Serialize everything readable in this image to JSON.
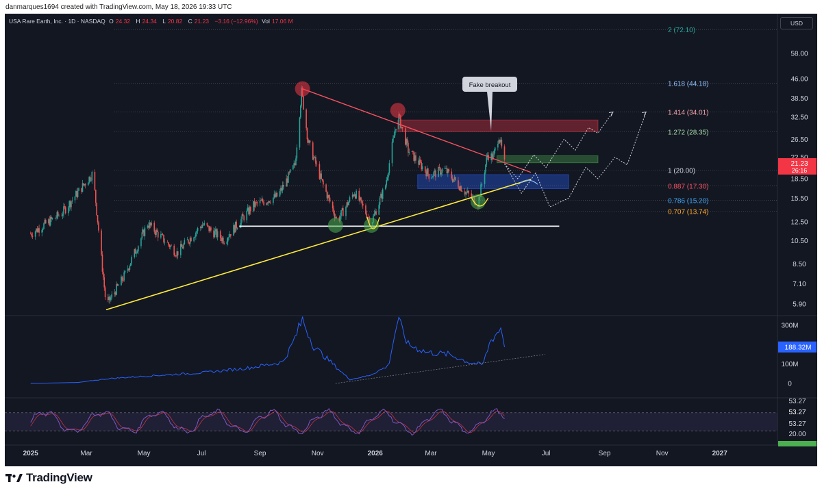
{
  "author_line": "danmarques1694 created with TradingView.com, May 18, 2026 19:33 UTC",
  "header": {
    "symbol": "USA Rare Earth, Inc. · 1D · NASDAQ",
    "open_label": "O",
    "open": "24.32",
    "high_label": "H",
    "high": "24.34",
    "low_label": "L",
    "low": "20.82",
    "close_label": "C",
    "close": "21.23",
    "change": "−3.16 (−12.96%)",
    "vol_label": "Vol",
    "vol": "17.06 M"
  },
  "currency_button": "USD",
  "colors": {
    "background": "#131722",
    "up": "#26a69a",
    "down": "#ef5350",
    "trendline_down": "#f7525f",
    "trendline_up": "#ffeb3b",
    "support": "#ffffff",
    "volume_line": "#2962ff",
    "rsi_line": "#7e57c2"
  },
  "chart_data": {
    "type": "candlestick",
    "log_scale": true,
    "price_axis_ticks": [
      "58.00",
      "46.00",
      "38.50",
      "32.50",
      "26.50",
      "22.50",
      "18.50",
      "15.50",
      "12.50",
      "10.50",
      "8.50",
      "7.10",
      "5.90"
    ],
    "x_axis_ticks": [
      "2025",
      "Mar",
      "May",
      "Jul",
      "Sep",
      "Nov",
      "2026",
      "Mar",
      "May",
      "Jul",
      "Sep",
      "Nov",
      "2027"
    ],
    "last_price": "21.23",
    "countdown": "26:16",
    "fib_levels": [
      {
        "label": "2 (72.10)",
        "value": 72.1,
        "color": "#26a69a"
      },
      {
        "label": "1.618 (44.18)",
        "value": 44.18,
        "color": "#90bff9"
      },
      {
        "label": "1.414 (34.01)",
        "value": 34.01,
        "color": "#f7a5a9"
      },
      {
        "label": "1.272 (28.35)",
        "value": 28.35,
        "color": "#a5d6a7"
      },
      {
        "label": "1 (20.00)",
        "value": 20.0,
        "color": "#d1d4dc"
      },
      {
        "label": "0.887 (17.30)",
        "value": 17.3,
        "color": "#f7525f"
      },
      {
        "label": "0.786 (15.20)",
        "value": 15.2,
        "color": "#42a5f5"
      },
      {
        "label": "0.707 (13.74)",
        "value": 13.74,
        "color": "#ffa726"
      }
    ],
    "annotation": "Fake breakout",
    "anchors": [
      {
        "date": "2025-01-01",
        "price": 11.2
      },
      {
        "date": "2025-02-03",
        "price": 13.5
      },
      {
        "date": "2025-03-08",
        "price": 19.5
      },
      {
        "date": "2025-03-22",
        "price": 5.8
      },
      {
        "date": "2025-04-10",
        "price": 7.6
      },
      {
        "date": "2025-05-05",
        "price": 12.3
      },
      {
        "date": "2025-06-05",
        "price": 9.4
      },
      {
        "date": "2025-07-02",
        "price": 12.2
      },
      {
        "date": "2025-07-25",
        "price": 10.6
      },
      {
        "date": "2025-08-25",
        "price": 14.5
      },
      {
        "date": "2025-09-20",
        "price": 15.8
      },
      {
        "date": "2025-10-08",
        "price": 21.0
      },
      {
        "date": "2025-10-15",
        "price": 41.0
      },
      {
        "date": "2025-10-22",
        "price": 26.0
      },
      {
        "date": "2025-11-05",
        "price": 18.2
      },
      {
        "date": "2025-11-22",
        "price": 12.6
      },
      {
        "date": "2025-12-10",
        "price": 16.4
      },
      {
        "date": "2025-12-28",
        "price": 12.4
      },
      {
        "date": "2026-01-12",
        "price": 17.5
      },
      {
        "date": "2026-01-25",
        "price": 33.5
      },
      {
        "date": "2026-02-05",
        "price": 24.0
      },
      {
        "date": "2026-02-28",
        "price": 19.0
      },
      {
        "date": "2026-03-15",
        "price": 20.2
      },
      {
        "date": "2026-04-08",
        "price": 16.2
      },
      {
        "date": "2026-04-20",
        "price": 14.8
      },
      {
        "date": "2026-04-30",
        "price": 23.0
      },
      {
        "date": "2026-05-06",
        "price": 22.5
      },
      {
        "date": "2026-05-12",
        "price": 27.5
      },
      {
        "date": "2026-05-15",
        "price": 24.3
      },
      {
        "date": "2026-05-18",
        "price": 21.23
      }
    ],
    "resistance_line": {
      "from": {
        "date": "2025-10-16",
        "price": 42.0
      },
      "to": {
        "date": "2026-06-15",
        "price": 19.6
      }
    },
    "ascending_support": {
      "from": {
        "date": "2025-03-22",
        "price": 5.6
      },
      "to": {
        "date": "2026-06-15",
        "price": 18.4
      }
    },
    "horizontal_support": {
      "from": "2025-08-10",
      "to": "2026-07-15",
      "price": 12.0
    },
    "zones": [
      {
        "from": "2026-01-25",
        "to": "2026-08-25",
        "low": 28.4,
        "high": 31.6,
        "color": "#f23645"
      },
      {
        "from": "2026-05-10",
        "to": "2026-08-25",
        "low": 21.4,
        "high": 22.8,
        "color": "#4caf50"
      },
      {
        "from": "2026-02-15",
        "to": "2026-07-25",
        "low": 16.9,
        "high": 19.2,
        "color": "#2962ff"
      }
    ],
    "markers": [
      {
        "date": "2025-10-16",
        "price": 42.0,
        "color": "#f23645"
      },
      {
        "date": "2026-01-25",
        "price": 34.5,
        "color": "#f23645"
      },
      {
        "date": "2025-11-20",
        "price": 12.1,
        "color": "#4caf50"
      },
      {
        "date": "2025-12-28",
        "price": 12.1,
        "color": "#4caf50"
      },
      {
        "date": "2026-04-20",
        "price": 15.0,
        "color": "#4caf50"
      }
    ],
    "projection_paths": [
      [
        {
          "date": "2026-05-18",
          "price": 21.2
        },
        {
          "date": "2026-06-05",
          "price": 16.2
        },
        {
          "date": "2026-06-20",
          "price": 19.5
        },
        {
          "date": "2026-07-05",
          "price": 14.3
        },
        {
          "date": "2026-07-25",
          "price": 15.5
        },
        {
          "date": "2026-08-12",
          "price": 20.5
        },
        {
          "date": "2026-08-25",
          "price": 18.5
        },
        {
          "date": "2026-09-12",
          "price": 22.5
        },
        {
          "date": "2026-09-25",
          "price": 21.0
        },
        {
          "date": "2026-10-15",
          "price": 34.0
        }
      ],
      [
        {
          "date": "2026-05-18",
          "price": 21.2
        },
        {
          "date": "2026-06-01",
          "price": 18.5
        },
        {
          "date": "2026-06-18",
          "price": 23.0
        },
        {
          "date": "2026-07-01",
          "price": 20.5
        },
        {
          "date": "2026-07-20",
          "price": 26.5
        },
        {
          "date": "2026-08-01",
          "price": 24.0
        },
        {
          "date": "2026-08-15",
          "price": 29.5
        },
        {
          "date": "2026-08-25",
          "price": 28.0
        },
        {
          "date": "2026-09-10",
          "price": 34.0
        }
      ]
    ],
    "volume": {
      "axis_ticks": [
        "300M",
        "100M",
        "0"
      ],
      "current_label": "188.32M",
      "anchors": [
        {
          "date": "2025-01-01",
          "value": 0
        },
        {
          "date": "2025-02-20",
          "value": 5
        },
        {
          "date": "2025-03-25",
          "value": 25
        },
        {
          "date": "2025-05-10",
          "value": 40
        },
        {
          "date": "2025-07-01",
          "value": 55
        },
        {
          "date": "2025-08-20",
          "value": 80
        },
        {
          "date": "2025-09-25",
          "value": 110
        },
        {
          "date": "2025-10-05",
          "value": 200
        },
        {
          "date": "2025-10-16",
          "value": 330
        },
        {
          "date": "2025-10-28",
          "value": 190
        },
        {
          "date": "2025-11-15",
          "value": 110
        },
        {
          "date": "2025-12-05",
          "value": 20
        },
        {
          "date": "2025-12-25",
          "value": 40
        },
        {
          "date": "2026-01-15",
          "value": 90
        },
        {
          "date": "2026-01-25",
          "value": 330
        },
        {
          "date": "2026-02-05",
          "value": 200
        },
        {
          "date": "2026-02-25",
          "value": 160
        },
        {
          "date": "2026-03-20",
          "value": 150
        },
        {
          "date": "2026-04-10",
          "value": 110
        },
        {
          "date": "2026-04-25",
          "value": 95
        },
        {
          "date": "2026-05-03",
          "value": 220
        },
        {
          "date": "2026-05-10",
          "value": 260
        },
        {
          "date": "2026-05-15",
          "value": 290
        },
        {
          "date": "2026-05-18",
          "value": 188
        }
      ],
      "trend": {
        "from": {
          "date": "2025-11-20",
          "value": 0
        },
        "to": {
          "date": "2026-06-30",
          "value": 150
        }
      }
    },
    "rsi": {
      "axis_ticks": [
        "53.27",
        "53.27",
        "20.00"
      ],
      "top_label": "53.27",
      "bottom_label": "20.00",
      "upper_band": 80,
      "lower_band": 20,
      "period_days": 10
    }
  },
  "footer": {
    "brand": "TradingView"
  }
}
